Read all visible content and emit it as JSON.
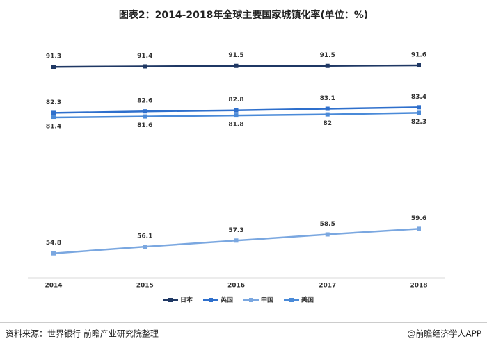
{
  "chart_data": {
    "type": "line",
    "title": "图表2：2014-2018年全球主要国家城镇化率(单位：%)",
    "categories": [
      "2014",
      "2015",
      "2016",
      "2017",
      "2018"
    ],
    "series": [
      {
        "name": "日本",
        "color": "#1f3864",
        "values": [
          91.3,
          91.4,
          91.5,
          91.5,
          91.6
        ],
        "label_position": "above"
      },
      {
        "name": "英国",
        "color": "#2e6fcc",
        "values": [
          82.3,
          82.6,
          82.8,
          83.1,
          83.4
        ],
        "label_position": "above"
      },
      {
        "name": "中国",
        "color": "#7aa7e0",
        "values": [
          54.8,
          56.1,
          57.3,
          58.5,
          59.6
        ],
        "label_position": "above"
      },
      {
        "name": "美国",
        "color": "#4a8ad8",
        "values": [
          81.4,
          81.6,
          81.8,
          82,
          82.3
        ],
        "label_position": "below"
      }
    ],
    "ylim": [
      50,
      95
    ],
    "source": "资料来源：世界银行 前瞻产业研究院整理",
    "brand": "@前瞻经济学人APP"
  }
}
